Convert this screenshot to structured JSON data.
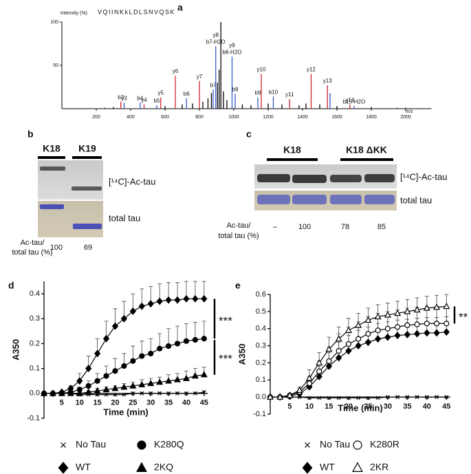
{
  "panel_labels": [
    "a",
    "b",
    "c",
    "d",
    "e"
  ],
  "gel_b": {
    "lanes": [
      "K18",
      "K19"
    ],
    "bands": [
      "[¹⁴C]-Ac-tau",
      "total tau"
    ],
    "ratio_label": [
      "Ac-tau/",
      "total tau (%)"
    ],
    "ratios": [
      100,
      69
    ]
  },
  "gel_c": {
    "lanes": [
      "K18",
      "K18 ΔKK"
    ],
    "bands": [
      "[¹⁴C]-Ac-tau",
      "total tau"
    ],
    "ratio_label": [
      "Ac-tau/",
      "total tau (%)"
    ],
    "ratios": [
      "–",
      100,
      78,
      85
    ]
  },
  "chart_data": [
    {
      "type": "spectrum",
      "sequence": "VQIINKkLDLSNVQSK",
      "ylabel": "Intensity (%)",
      "xlabel": "m/z",
      "xlim": [
        0,
        2150
      ],
      "ylim": [
        0,
        100
      ],
      "xticks": [
        200,
        400,
        600,
        800,
        1000,
        1200,
        1400,
        1600,
        1800,
        2000
      ],
      "yticks": [
        50,
        100
      ],
      "peaks": {
        "x": [
          343,
          362,
          455,
          478,
          552,
          575,
          660,
          725,
          800,
          880,
          895,
          925,
          990,
          1008,
          1140,
          1160,
          1230,
          1325,
          1450,
          1545,
          1560,
          1675,
          1700,
          250,
          300,
          600,
          700,
          760,
          820,
          850,
          870,
          905,
          915,
          940,
          960,
          1050,
          1100,
          1200,
          1280,
          1380,
          1420,
          1500,
          1600,
          1800,
          1950,
          2000
        ],
        "values": [
          8,
          7,
          7,
          5,
          4,
          13,
          38,
          12,
          32,
          22,
          72,
          100,
          60,
          17,
          13,
          40,
          14,
          11,
          40,
          27,
          18,
          5,
          3,
          1,
          2,
          3,
          5,
          6,
          8,
          12,
          18,
          30,
          45,
          20,
          10,
          5,
          4,
          6,
          5,
          4,
          6,
          5,
          3,
          2,
          1,
          1
        ],
        "colors": [
          "#d0202a",
          "#3355cc",
          "#3355cc",
          "#d0202a",
          "#3355cc",
          "#d0202a",
          "#d0202a",
          "#3355cc",
          "#d0202a",
          "#3355cc",
          "#3355cc",
          "#000000",
          "#3355cc",
          "#3355cc",
          "#3355cc",
          "#d0202a",
          "#3355cc",
          "#d0202a",
          "#d0202a",
          "#d0202a",
          "#3355cc",
          "#d0202a",
          "#3355cc",
          "#000000",
          "#000000",
          "#000000",
          "#000000",
          "#000000",
          "#000000",
          "#000000",
          "#000000",
          "#000000",
          "#000000",
          "#000000",
          "#000000",
          "#000000",
          "#000000",
          "#000000",
          "#000000",
          "#000000",
          "#000000",
          "#000000",
          "#000000",
          "#000000",
          "#000000",
          "#000000"
        ],
        "labels": [
          [
            "b3"
          ],
          [
            "y3"
          ],
          [
            "b4"
          ],
          [
            "y4"
          ],
          [
            "b5"
          ],
          [
            "y5"
          ],
          [
            "y6"
          ],
          [
            "b6"
          ],
          [
            "y7"
          ],
          [
            "b7"
          ],
          [
            "y8",
            "b7-H2O"
          ],
          null,
          [
            "y9",
            "b8-H2O"
          ],
          [
            "b8"
          ],
          [
            "b9"
          ],
          [
            "y10"
          ],
          [
            "b10"
          ],
          [
            "y11"
          ],
          [
            "y12"
          ],
          [
            "y13"
          ],
          null,
          [
            "y14"
          ],
          [
            "b15-H2O"
          ],
          null,
          null,
          null,
          null,
          null,
          null,
          null,
          null,
          null,
          null,
          null,
          null,
          null,
          null,
          null,
          null,
          null,
          null,
          null,
          null,
          null,
          null,
          null
        ]
      }
    },
    {
      "type": "line",
      "ylabel": "A350",
      "xlabel": "Time (min)",
      "x": [
        0,
        2.5,
        5,
        7.5,
        10,
        12.5,
        15,
        17.5,
        20,
        22.5,
        25,
        27.5,
        30,
        32.5,
        35,
        37.5,
        40,
        42.5,
        45
      ],
      "xlim": [
        0,
        46
      ],
      "ylim": [
        -0.1,
        0.45
      ],
      "xticks": [
        5,
        10,
        15,
        20,
        25,
        30,
        35,
        40,
        45
      ],
      "yticks": [
        -0.1,
        {
          "value": 0,
          "label": "0.0"
        },
        0.1,
        0.2,
        0.3,
        0.4
      ],
      "annotations": [
        "***",
        "***"
      ],
      "series": [
        {
          "name": "No Tau",
          "color": "#000000",
          "marker": "x",
          "filled": true,
          "values": [
            0,
            0,
            0,
            0,
            -0.005,
            -0.005,
            -0.005,
            -0.005,
            -0.005,
            -0.005,
            0,
            0,
            0,
            0,
            0,
            0,
            0,
            0,
            0.005
          ],
          "errors": [
            0.005,
            0.005,
            0.005,
            0.005,
            0.005,
            0.005,
            0.005,
            0.005,
            0.005,
            0.005,
            0.005,
            0.005,
            0.005,
            0.005,
            0.005,
            0.005,
            0.005,
            0.005,
            0.005
          ]
        },
        {
          "name": "WT",
          "color": "#000000",
          "marker": "diamond",
          "filled": true,
          "values": [
            0,
            0,
            0.005,
            0.02,
            0.05,
            0.1,
            0.16,
            0.22,
            0.27,
            0.3,
            0.33,
            0.35,
            0.36,
            0.37,
            0.375,
            0.375,
            0.38,
            0.38,
            0.38
          ],
          "errors": [
            0,
            0,
            0.005,
            0.01,
            0.03,
            0.05,
            0.06,
            0.07,
            0.07,
            0.07,
            0.07,
            0.07,
            0.07,
            0.07,
            0.07,
            0.07,
            0.07,
            0.07,
            0.07
          ]
        },
        {
          "name": "K280Q",
          "color": "#000000",
          "marker": "circle",
          "filled": true,
          "values": [
            0,
            0,
            0,
            0.005,
            0.015,
            0.03,
            0.05,
            0.07,
            0.09,
            0.11,
            0.13,
            0.15,
            0.16,
            0.18,
            0.19,
            0.2,
            0.21,
            0.215,
            0.22
          ],
          "errors": [
            0,
            0,
            0,
            0.005,
            0.01,
            0.02,
            0.03,
            0.04,
            0.05,
            0.05,
            0.06,
            0.06,
            0.06,
            0.06,
            0.07,
            0.07,
            0.07,
            0.07,
            0.07
          ]
        },
        {
          "name": "2KQ",
          "color": "#000000",
          "marker": "triangle",
          "filled": true,
          "values": [
            0,
            0,
            0,
            0,
            0,
            0.005,
            0.01,
            0.015,
            0.02,
            0.025,
            0.03,
            0.035,
            0.04,
            0.045,
            0.05,
            0.055,
            0.06,
            0.07,
            0.075
          ],
          "errors": [
            0,
            0,
            0,
            0,
            0.005,
            0.005,
            0.01,
            0.01,
            0.01,
            0.015,
            0.015,
            0.02,
            0.02,
            0.02,
            0.025,
            0.025,
            0.03,
            0.03,
            0.03
          ]
        }
      ]
    },
    {
      "type": "line",
      "ylabel": "A350",
      "xlabel": "Time (min)",
      "x": [
        0,
        2.5,
        5,
        7.5,
        10,
        12.5,
        15,
        17.5,
        20,
        22.5,
        25,
        27.5,
        30,
        32.5,
        35,
        37.5,
        40,
        42.5,
        45
      ],
      "xlim": [
        0,
        46
      ],
      "ylim": [
        -0.1,
        0.6
      ],
      "xticks": [
        5,
        10,
        15,
        20,
        25,
        30,
        35,
        40,
        45
      ],
      "yticks": [
        -0.1,
        {
          "value": 0,
          "label": "0.0"
        },
        0.1,
        0.2,
        0.3,
        0.4,
        0.5,
        0.6
      ],
      "annotations": [
        "**"
      ],
      "series": [
        {
          "name": "No Tau",
          "color": "#000000",
          "marker": "x",
          "filled": true,
          "values": [
            0,
            0,
            0,
            0,
            -0.005,
            -0.005,
            -0.005,
            -0.005,
            -0.005,
            -0.005,
            -0.005,
            -0.005,
            0,
            0,
            0,
            0,
            0,
            0,
            0
          ],
          "errors": [
            0.005,
            0.005,
            0.005,
            0.005,
            0.005,
            0.005,
            0.005,
            0.005,
            0.005,
            0.005,
            0.005,
            0.005,
            0.005,
            0.005,
            0.005,
            0.005,
            0.005,
            0.005,
            0.005
          ]
        },
        {
          "name": "WT",
          "color": "#000000",
          "marker": "diamond",
          "filled": true,
          "values": [
            0,
            0,
            0.005,
            0.02,
            0.06,
            0.12,
            0.18,
            0.23,
            0.27,
            0.3,
            0.32,
            0.34,
            0.35,
            0.36,
            0.365,
            0.37,
            0.375,
            0.375,
            0.38
          ],
          "errors": [
            0,
            0,
            0.01,
            0.02,
            0.04,
            0.06,
            0.08,
            0.09,
            0.09,
            0.09,
            0.09,
            0.09,
            0.09,
            0.09,
            0.09,
            0.09,
            0.09,
            0.09,
            0.09
          ]
        },
        {
          "name": "K280R",
          "color": "#000000",
          "marker": "circle",
          "filled": false,
          "values": [
            0,
            0,
            0.01,
            0.03,
            0.08,
            0.15,
            0.21,
            0.27,
            0.31,
            0.34,
            0.37,
            0.39,
            0.4,
            0.41,
            0.42,
            0.425,
            0.43,
            0.43,
            0.43
          ],
          "errors": [
            0,
            0,
            0.01,
            0.02,
            0.04,
            0.06,
            0.08,
            0.1,
            0.1,
            0.1,
            0.1,
            0.1,
            0.1,
            0.1,
            0.1,
            0.1,
            0.1,
            0.1,
            0.1
          ]
        },
        {
          "name": "2KR",
          "color": "#000000",
          "marker": "triangle",
          "filled": false,
          "values": [
            0,
            0,
            0.01,
            0.04,
            0.11,
            0.2,
            0.28,
            0.34,
            0.39,
            0.42,
            0.45,
            0.47,
            0.48,
            0.49,
            0.5,
            0.51,
            0.52,
            0.525,
            0.53
          ],
          "errors": [
            0,
            0,
            0.01,
            0.02,
            0.05,
            0.06,
            0.07,
            0.07,
            0.07,
            0.07,
            0.07,
            0.07,
            0.07,
            0.07,
            0.07,
            0.07,
            0.07,
            0.07,
            0.07
          ]
        }
      ]
    }
  ]
}
